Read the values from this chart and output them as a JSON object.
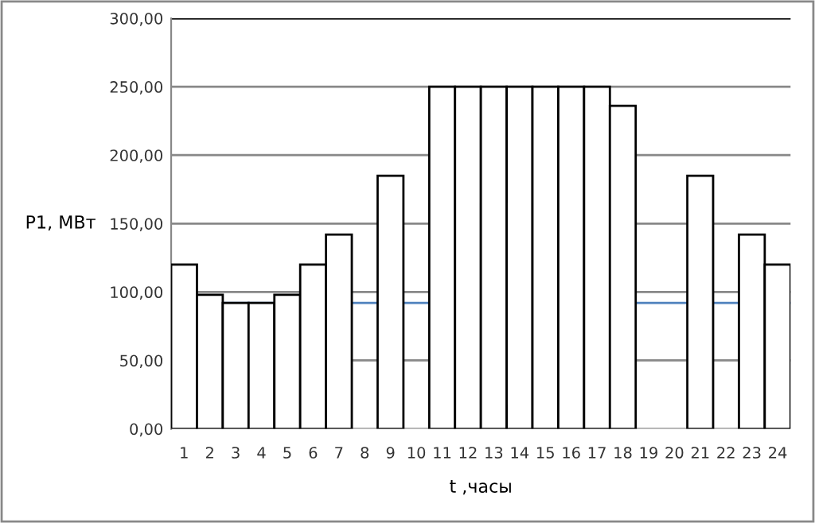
{
  "chart_data": {
    "type": "bar",
    "xlabel": "t ,часы",
    "ylabel": "P1, МВт",
    "categories": [
      "1",
      "2",
      "3",
      "4",
      "5",
      "6",
      "7",
      "8",
      "9",
      "10",
      "11",
      "12",
      "13",
      "14",
      "15",
      "16",
      "17",
      "18",
      "19",
      "20",
      "21",
      "22",
      "23",
      "24"
    ],
    "series": [
      {
        "color": "#ffffff",
        "values": [
          120,
          98,
          92,
          92,
          98,
          120,
          142,
          null,
          185,
          null,
          250,
          250,
          250,
          250,
          250,
          250,
          250,
          236,
          null,
          null,
          185,
          null,
          142,
          120
        ]
      }
    ],
    "ylim": [
      0,
      300
    ],
    "yticks": [
      {
        "value": 0,
        "label": "0,00"
      },
      {
        "value": 50,
        "label": "50,00"
      },
      {
        "value": 100,
        "label": "100,00"
      },
      {
        "value": 150,
        "label": "150,00"
      },
      {
        "value": 200,
        "label": "200,00"
      },
      {
        "value": 250,
        "label": "250,00"
      },
      {
        "value": 300,
        "label": "300,00"
      }
    ],
    "grid": "y",
    "ref_lines": [
      {
        "axis": "y",
        "value": 92,
        "color": "#4f81bd"
      },
      {
        "axis": "y",
        "value": 300,
        "color": "#000000"
      }
    ]
  }
}
